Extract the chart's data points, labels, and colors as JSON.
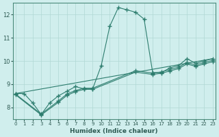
{
  "xlabel": "Humidex (Indice chaleur)",
  "ylabel": "",
  "bg_color": "#d0eeed",
  "line_color": "#2d7d6e",
  "grid_color": "#b0d8d4",
  "xlim": [
    0,
    23
  ],
  "ylim": [
    7.5,
    12.5
  ],
  "yticks": [
    8,
    9,
    10,
    11,
    12
  ],
  "xticks": [
    0,
    1,
    2,
    3,
    4,
    5,
    6,
    7,
    8,
    9,
    10,
    11,
    12,
    13,
    14,
    15,
    16,
    17,
    18,
    19,
    20,
    21,
    22,
    23
  ],
  "series0_x": [
    0,
    1,
    2,
    3,
    4,
    5,
    6,
    7,
    8,
    9,
    10,
    11,
    12,
    13,
    14,
    15,
    16,
    17,
    18,
    19,
    20,
    21,
    22,
    23
  ],
  "series0_y": [
    8.6,
    8.6,
    8.2,
    7.7,
    8.2,
    8.5,
    8.7,
    8.9,
    8.8,
    8.8,
    9.8,
    11.5,
    12.3,
    12.2,
    12.1,
    11.8,
    9.5,
    9.5,
    9.7,
    9.8,
    10.1,
    9.9,
    10.0,
    10.1
  ],
  "series1_x": [
    0,
    23
  ],
  "series1_y": [
    8.6,
    10.1
  ],
  "series2_x": [
    0,
    3,
    5,
    6,
    7,
    8,
    9,
    14,
    16,
    17,
    18,
    19,
    20,
    21,
    22,
    23
  ],
  "series2_y": [
    8.58,
    7.72,
    8.28,
    8.58,
    8.73,
    8.83,
    8.83,
    9.58,
    9.48,
    9.53,
    9.63,
    9.73,
    9.93,
    9.83,
    9.93,
    10.03
  ],
  "series3_x": [
    0,
    3,
    5,
    6,
    7,
    8,
    9,
    14,
    16,
    17,
    18,
    19,
    20,
    21,
    22,
    23
  ],
  "series3_y": [
    8.55,
    7.68,
    8.22,
    8.52,
    8.68,
    8.78,
    8.78,
    9.52,
    9.42,
    9.47,
    9.57,
    9.67,
    9.87,
    9.77,
    9.87,
    9.97
  ]
}
